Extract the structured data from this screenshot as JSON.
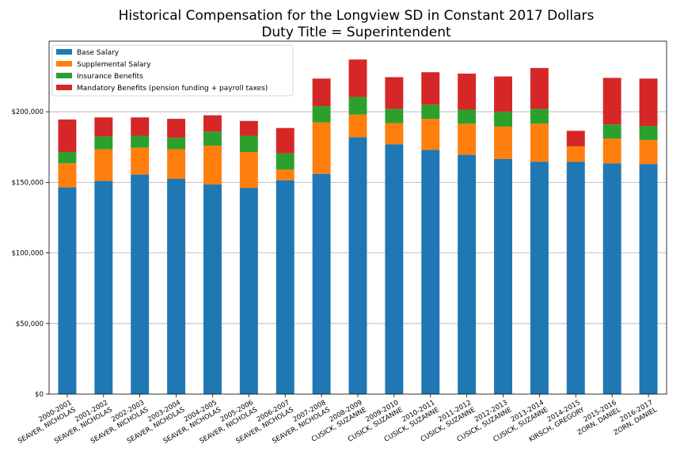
{
  "chart_data": {
    "type": "bar",
    "stacked": true,
    "title": "Historical Compensation for the Longview SD in Constant 2017 Dollars",
    "subtitle": "Duty Title = Superintendent",
    "xlabel": "",
    "ylabel": "",
    "ylim": [
      0,
      250000
    ],
    "yticks": [
      0,
      50000,
      100000,
      150000,
      200000
    ],
    "ytick_labels": [
      "$0",
      "$50,000",
      "$100,000",
      "$150,000",
      "$200,000"
    ],
    "grid": "horizontal",
    "legend_position": "top-left",
    "categories": [
      [
        "2000-2001",
        "SEAVER, NICHOLAS"
      ],
      [
        "2001-2002",
        "SEAVER, NICHOLAS"
      ],
      [
        "2002-2003",
        "SEAVER, NICHOLAS"
      ],
      [
        "2003-2004",
        "SEAVER, NICHOLAS"
      ],
      [
        "2004-2005",
        "SEAVER, NICHOLAS"
      ],
      [
        "2005-2006",
        "SEAVER, NICHOLAS"
      ],
      [
        "2006-2007",
        "SEAVER, NICHOLAS"
      ],
      [
        "2007-2008",
        "SEAVER, NICHOLAS"
      ],
      [
        "2008-2009",
        "CUSICK, SUZANNE"
      ],
      [
        "2009-2010",
        "CUSICK, SUZANNE"
      ],
      [
        "2010-2011",
        "CUSICK, SUZANNE"
      ],
      [
        "2011-2012",
        "CUSICK, SUZANNE"
      ],
      [
        "2012-2013",
        "CUSICK, SUZANNE"
      ],
      [
        "2013-2014",
        "CUSICK, SUZANNE"
      ],
      [
        "2014-2015",
        "KIRSCH, GREGORY"
      ],
      [
        "2015-2016",
        "ZORN, DANIEL"
      ],
      [
        "2016-2017",
        "ZORN, DANIEL"
      ]
    ],
    "series": [
      {
        "name": "Base Salary",
        "color": "#1f77b4",
        "values": [
          146500,
          151000,
          155500,
          152500,
          148500,
          146000,
          151500,
          156000,
          182000,
          177000,
          173000,
          169500,
          166500,
          164500,
          164500,
          163500,
          163000
        ]
      },
      {
        "name": "Supplemental Salary",
        "color": "#ff7f0e",
        "values": [
          17000,
          22500,
          19000,
          21000,
          27500,
          25500,
          7500,
          36500,
          16000,
          15000,
          22000,
          22000,
          23000,
          27000,
          11000,
          17500,
          17000
        ]
      },
      {
        "name": "Insurance Benefits",
        "color": "#2ca02c",
        "values": [
          8000,
          9000,
          8500,
          8000,
          10000,
          11500,
          11500,
          11500,
          12500,
          10000,
          10000,
          10000,
          10500,
          10500,
          0,
          10000,
          10000
        ]
      },
      {
        "name": "Mandatory Benefits (pension funding + payroll taxes)",
        "color": "#d62728",
        "values": [
          23000,
          13500,
          13000,
          13500,
          11500,
          10500,
          18000,
          19500,
          26500,
          22500,
          23000,
          25500,
          25000,
          29000,
          11000,
          33000,
          33500
        ]
      }
    ]
  }
}
